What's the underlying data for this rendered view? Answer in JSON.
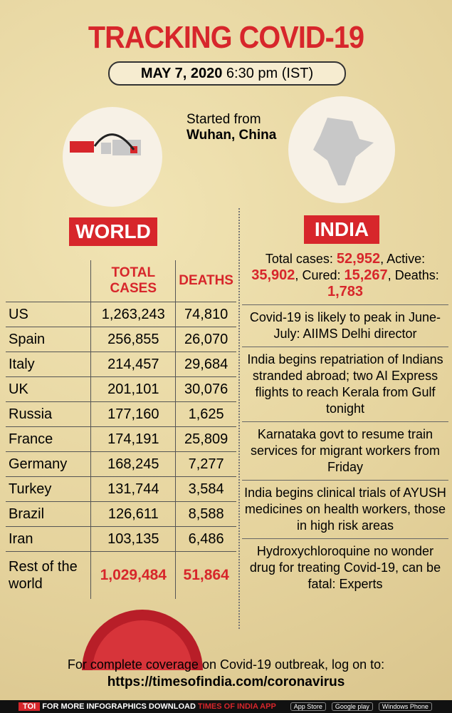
{
  "header": {
    "title": "TRACKING COVID-19",
    "date": "MAY 7, 2020",
    "time": "6:30 pm (IST)"
  },
  "origin": {
    "line1": "Started from",
    "line2": "Wuhan, China"
  },
  "world": {
    "label": "WORLD",
    "columns": [
      "TOTAL CASES",
      "DEATHS"
    ],
    "rows": [
      [
        "US",
        "1,263,243",
        "74,810"
      ],
      [
        "Spain",
        "256,855",
        "26,070"
      ],
      [
        "Italy",
        "214,457",
        "29,684"
      ],
      [
        "UK",
        "201,101",
        "30,076"
      ],
      [
        "Russia",
        "177,160",
        "1,625"
      ],
      [
        "France",
        "174,191",
        "25,809"
      ],
      [
        "Germany",
        "168,245",
        "7,277"
      ],
      [
        "Turkey",
        "131,744",
        "3,584"
      ],
      [
        "Brazil",
        "126,611",
        "8,588"
      ],
      [
        "Iran",
        "103,135",
        "6,486"
      ]
    ],
    "rest": [
      "Rest of the world",
      "1,029,484",
      "51,864"
    ]
  },
  "india": {
    "label": "INDIA",
    "stats": [
      {
        "label": "Total cases:",
        "value": "52,952",
        "suffix": ","
      },
      {
        "label": "Active:",
        "value": "35,902",
        "suffix": ","
      },
      {
        "label": "Cured:",
        "value": "15,267",
        "suffix": ","
      },
      {
        "label": "Deaths:",
        "value": "1,783"
      }
    ],
    "news": [
      "Covid-19 is likely to peak in June-July: AIIMS Delhi director",
      "India begins repatriation of Indians stranded abroad; two AI Express flights to reach Kerala from Gulf tonight",
      "Karnataka govt to resume train services for migrant workers from Friday",
      "India begins clinical trials of AYUSH medicines on health workers, those in high risk areas",
      "Hydroxychloroquine no wonder drug for treating Covid-19, can be fatal: Experts"
    ]
  },
  "footer": {
    "text": "For complete coverage on Covid-19 outbreak, log on to:",
    "url": "https://timesofindia.com/coronavirus"
  },
  "bar": {
    "brand": "TOI",
    "text": "FOR MORE INFOGRAPHICS DOWNLOAD",
    "app": "TIMES OF INDIA APP",
    "stores": [
      "App Store",
      "Google play",
      "Windows Phone"
    ]
  }
}
